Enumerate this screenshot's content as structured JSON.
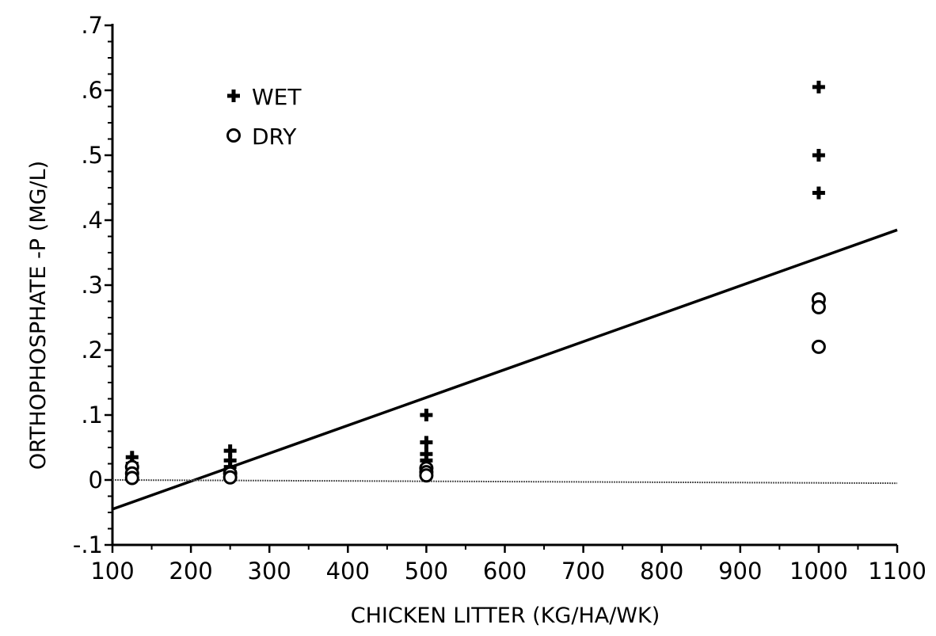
{
  "chart_data": {
    "type": "scatter",
    "title": "",
    "xlabel": "CHICKEN LITTER (KG/HA/WK)",
    "ylabel": "ORTHOPHOSPHATE -P (MG/L)",
    "xlim": [
      100,
      1100
    ],
    "ylim": [
      -0.1,
      0.7
    ],
    "x_ticks": [
      100,
      200,
      300,
      400,
      500,
      600,
      700,
      800,
      900,
      1000,
      1100
    ],
    "x_tick_labels": [
      "100",
      "200",
      "300",
      "400",
      "500",
      "600",
      "700",
      "800",
      "900",
      "1000",
      "1100"
    ],
    "y_ticks": [
      -0.1,
      0,
      0.1,
      0.2,
      0.3,
      0.4,
      0.5,
      0.6,
      0.7
    ],
    "y_tick_labels": [
      "-.1",
      "0",
      ".1",
      ".2",
      ".3",
      ".4",
      ".5",
      ".6",
      ".7"
    ],
    "grid": false,
    "legend_position": "top-left",
    "series": [
      {
        "name": "WET",
        "marker": "plus",
        "x": [
          125,
          125,
          125,
          250,
          250,
          250,
          500,
          500,
          500,
          500,
          1000,
          1000,
          1000
        ],
        "y": [
          0.035,
          0.025,
          0.02,
          0.045,
          0.03,
          0.02,
          0.1,
          0.058,
          0.04,
          0.03,
          0.605,
          0.5,
          0.442
        ]
      },
      {
        "name": "DRY",
        "marker": "circle",
        "x": [
          125,
          125,
          125,
          250,
          250,
          500,
          500,
          500,
          1000,
          1000,
          1000
        ],
        "y": [
          0.02,
          0.01,
          0.003,
          0.01,
          0.004,
          0.018,
          0.012,
          0.007,
          0.278,
          0.266,
          0.205
        ]
      }
    ],
    "reference_lines": [
      {
        "x": [
          100,
          1100
        ],
        "y": [
          -0.045,
          0.385
        ]
      },
      {
        "x": [
          100,
          1100
        ],
        "y": [
          0,
          -0.005
        ]
      }
    ]
  }
}
